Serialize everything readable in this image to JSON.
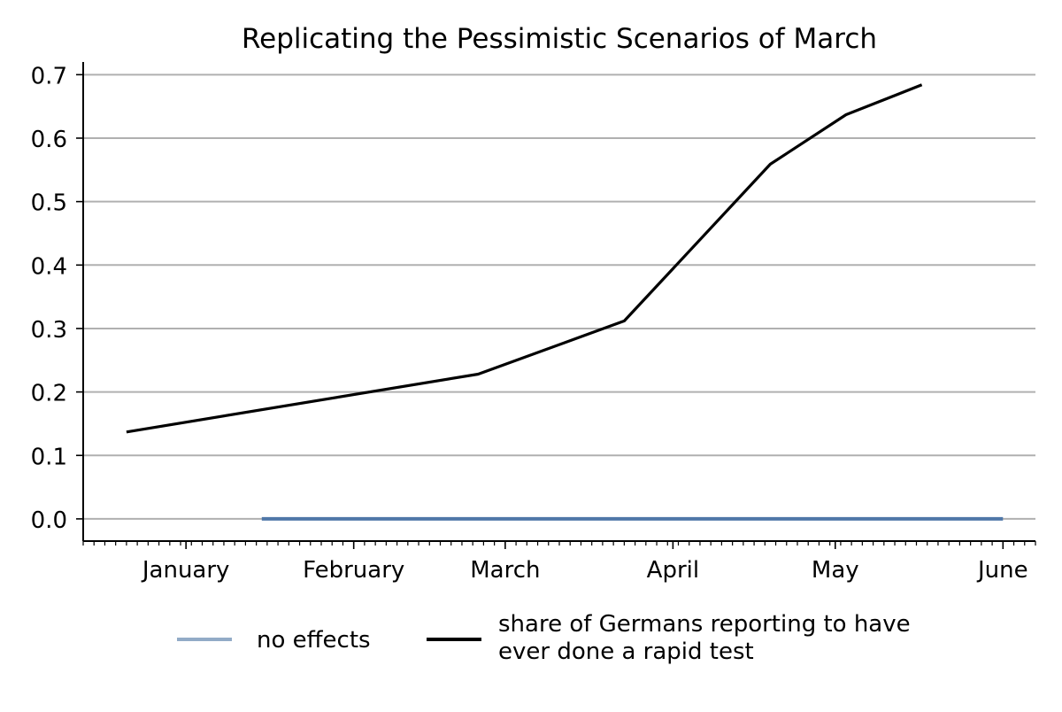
{
  "chart_data": {
    "type": "line",
    "title": "Replicating the Pessimistic Scenarios of March",
    "xlabel": "",
    "ylabel": "",
    "x_axis": {
      "type": "date",
      "range": [
        "2020-12-13",
        "2021-06-07"
      ],
      "ticks": [
        {
          "date": "2021-01-01",
          "label": "January"
        },
        {
          "date": "2021-02-01",
          "label": "February"
        },
        {
          "date": "2021-03-01",
          "label": "March"
        },
        {
          "date": "2021-04-01",
          "label": "April"
        },
        {
          "date": "2021-05-01",
          "label": "May"
        },
        {
          "date": "2021-06-01",
          "label": "June"
        }
      ]
    },
    "y_axis": {
      "range": [
        -0.035,
        0.72
      ],
      "ticks": [
        "0.0",
        "0.1",
        "0.2",
        "0.3",
        "0.4",
        "0.5",
        "0.6",
        "0.7"
      ]
    },
    "grid": {
      "horizontal": true,
      "vertical": false
    },
    "legend": {
      "position": "bottom-center",
      "columns": 2
    },
    "series": [
      {
        "name": "no effects",
        "color": "#4f77a8",
        "legend_color": "#92abc7",
        "points": [
          {
            "x": "2021-01-15",
            "y": 0.0
          },
          {
            "x": "2021-06-01",
            "y": 0.0
          }
        ]
      },
      {
        "name": "share of Germans reporting to have\never done a rapid test",
        "legend_lines": [
          "share of Germans reporting to have",
          "ever done a rapid test"
        ],
        "color": "#000000",
        "legend_color": "#000000",
        "points": [
          {
            "x": "2020-12-21",
            "y": 0.137
          },
          {
            "x": "2021-02-24",
            "y": 0.228
          },
          {
            "x": "2021-03-23",
            "y": 0.312
          },
          {
            "x": "2021-04-19",
            "y": 0.559
          },
          {
            "x": "2021-05-03",
            "y": 0.637
          },
          {
            "x": "2021-05-17",
            "y": 0.684
          }
        ]
      }
    ]
  }
}
